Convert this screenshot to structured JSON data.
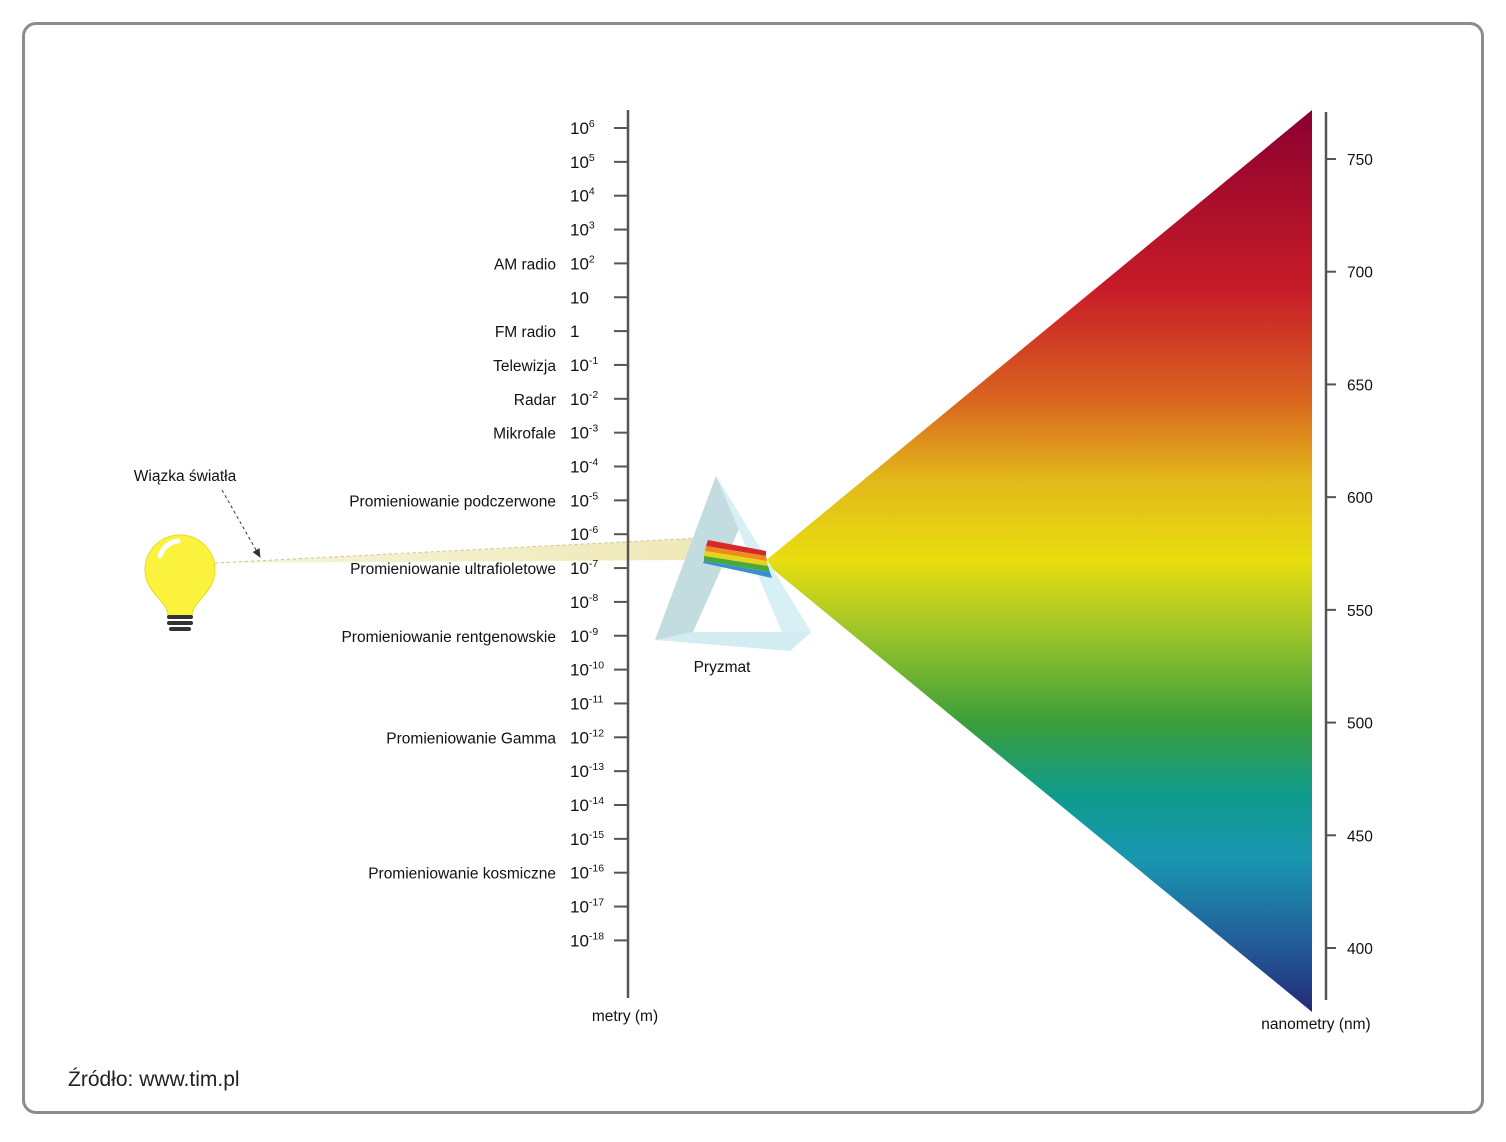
{
  "meter_axis": {
    "title": "metry (m)",
    "ticks": [
      {
        "base": "10",
        "exp": "6"
      },
      {
        "base": "10",
        "exp": "5"
      },
      {
        "base": "10",
        "exp": "4"
      },
      {
        "base": "10",
        "exp": "3"
      },
      {
        "base": "10",
        "exp": "2"
      },
      {
        "base": "10",
        "exp": ""
      },
      {
        "base": "1",
        "exp": ""
      },
      {
        "base": "10",
        "exp": "-1"
      },
      {
        "base": "10",
        "exp": "-2"
      },
      {
        "base": "10",
        "exp": "-3"
      },
      {
        "base": "10",
        "exp": "-4"
      },
      {
        "base": "10",
        "exp": "-5"
      },
      {
        "base": "10",
        "exp": "-6"
      },
      {
        "base": "10",
        "exp": "-7"
      },
      {
        "base": "10",
        "exp": "-8"
      },
      {
        "base": "10",
        "exp": "-9"
      },
      {
        "base": "10",
        "exp": "-10"
      },
      {
        "base": "10",
        "exp": "-11"
      },
      {
        "base": "10",
        "exp": "-12"
      },
      {
        "base": "10",
        "exp": "-13"
      },
      {
        "base": "10",
        "exp": "-14"
      },
      {
        "base": "10",
        "exp": "-15"
      },
      {
        "base": "10",
        "exp": "-16"
      },
      {
        "base": "10",
        "exp": "-17"
      },
      {
        "base": "10",
        "exp": "-18"
      }
    ]
  },
  "band_labels": [
    {
      "text": "AM radio",
      "tick": 4
    },
    {
      "text": "FM radio",
      "tick": 6
    },
    {
      "text": "Telewizja",
      "tick": 7
    },
    {
      "text": "Radar",
      "tick": 8
    },
    {
      "text": "Mikrofale",
      "tick": 9
    },
    {
      "text": "Promieniowanie podczerwone",
      "tick": 11
    },
    {
      "text": "Promieniowanie ultrafioletowe",
      "tick": 13
    },
    {
      "text": "Promieniowanie rentgenowskie",
      "tick": 15
    },
    {
      "text": "Promieniowanie Gamma",
      "tick": 18
    },
    {
      "text": "Promieniowanie kosmiczne",
      "tick": 22
    }
  ],
  "nm_axis": {
    "title": "nanometry (nm)",
    "ticks": [
      750,
      700,
      650,
      600,
      550,
      500,
      450,
      400
    ]
  },
  "labels": {
    "light_beam": "Wiązka światła",
    "prism": "Pryzmat",
    "source": "Źródło: www.tim.pl"
  },
  "colors": {
    "spectrum": [
      "#8a0030",
      "#c81c28",
      "#d9641f",
      "#e2b81a",
      "#e8de10",
      "#9cc42a",
      "#3a9e3a",
      "#0f9b8e",
      "#1996b0",
      "#225f9a",
      "#232a78"
    ],
    "bulb": "#faf23c",
    "beam": "#f4f0c9",
    "prism": "#cfe9ee",
    "axis": "#555555"
  }
}
